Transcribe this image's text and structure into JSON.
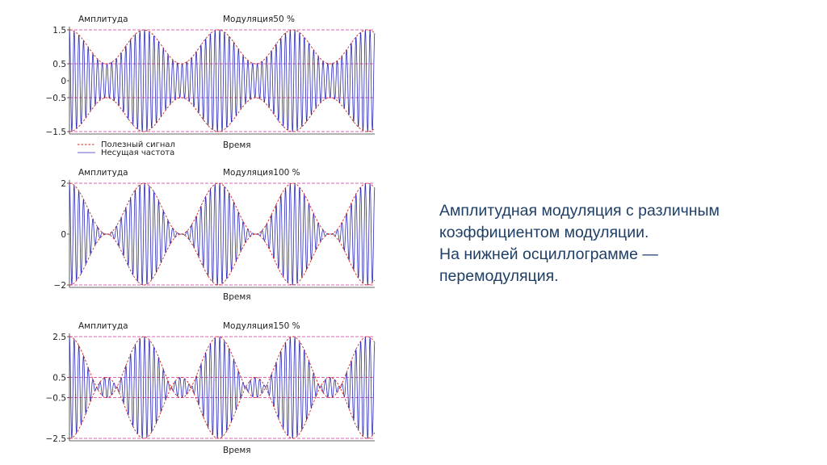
{
  "caption": {
    "lines": [
      "Амплитудная модуляция с различным",
      "коэффициентом модуляции.",
      "На нижней осциллограмме —",
      "перемодуляция."
    ]
  },
  "colors": {
    "carrier": "#2b2bb8",
    "envelope": "#cc2a1e",
    "reference_lines": "#cc3399",
    "caption": "#1f3f66"
  },
  "chart_data": [
    {
      "type": "line",
      "title": "Модуляция50 %",
      "ylabel": "Амплитуда",
      "xlabel": "Время",
      "ylim": [
        -1.5,
        1.5
      ],
      "yticks": [
        {
          "v": 1.5,
          "label": "1.5"
        },
        {
          "v": 0.5,
          "label": "0.5"
        },
        {
          "v": 0,
          "label": "0"
        },
        {
          "v": -0.5,
          "label": "−0.5"
        },
        {
          "v": -1.5,
          "label": "−1.5"
        }
      ],
      "reference_lines": [
        1.5,
        0.5,
        -0.5,
        -1.5
      ],
      "modulation_index": 0.5,
      "modulation_cycles": 4.1,
      "carrier_cycles": 65,
      "grid": false,
      "legend": {
        "position": "bottom-left",
        "entries": [
          "Полезный сигнал",
          "Несущая частота"
        ]
      },
      "series": [
        {
          "name": "Полезный сигнал",
          "style": "dashed"
        },
        {
          "name": "Несущая частота",
          "style": "solid"
        }
      ]
    },
    {
      "type": "line",
      "title": "Модуляция100 %",
      "ylabel": "Амплитуда",
      "xlabel": "Время",
      "ylim": [
        -2,
        2
      ],
      "yticks": [
        {
          "v": 2,
          "label": "2"
        },
        {
          "v": 0,
          "label": "0"
        },
        {
          "v": -2,
          "label": "−2"
        }
      ],
      "reference_lines": [
        2,
        -2
      ],
      "modulation_index": 1.0,
      "modulation_cycles": 4.1,
      "carrier_cycles": 65,
      "grid": false
    },
    {
      "type": "line",
      "title": "Модуляция150 %",
      "ylabel": "Амплитуда",
      "xlabel": "Время",
      "ylim": [
        -2.5,
        2.5
      ],
      "yticks": [
        {
          "v": 2.5,
          "label": "2.5"
        },
        {
          "v": 0.5,
          "label": "0.5"
        },
        {
          "v": -0.5,
          "label": "−0.5"
        },
        {
          "v": -2.5,
          "label": "−2.5"
        }
      ],
      "reference_lines": [
        2.5,
        0.5,
        -0.5,
        -2.5
      ],
      "modulation_index": 1.5,
      "modulation_cycles": 4.1,
      "carrier_cycles": 65,
      "grid": false
    }
  ]
}
